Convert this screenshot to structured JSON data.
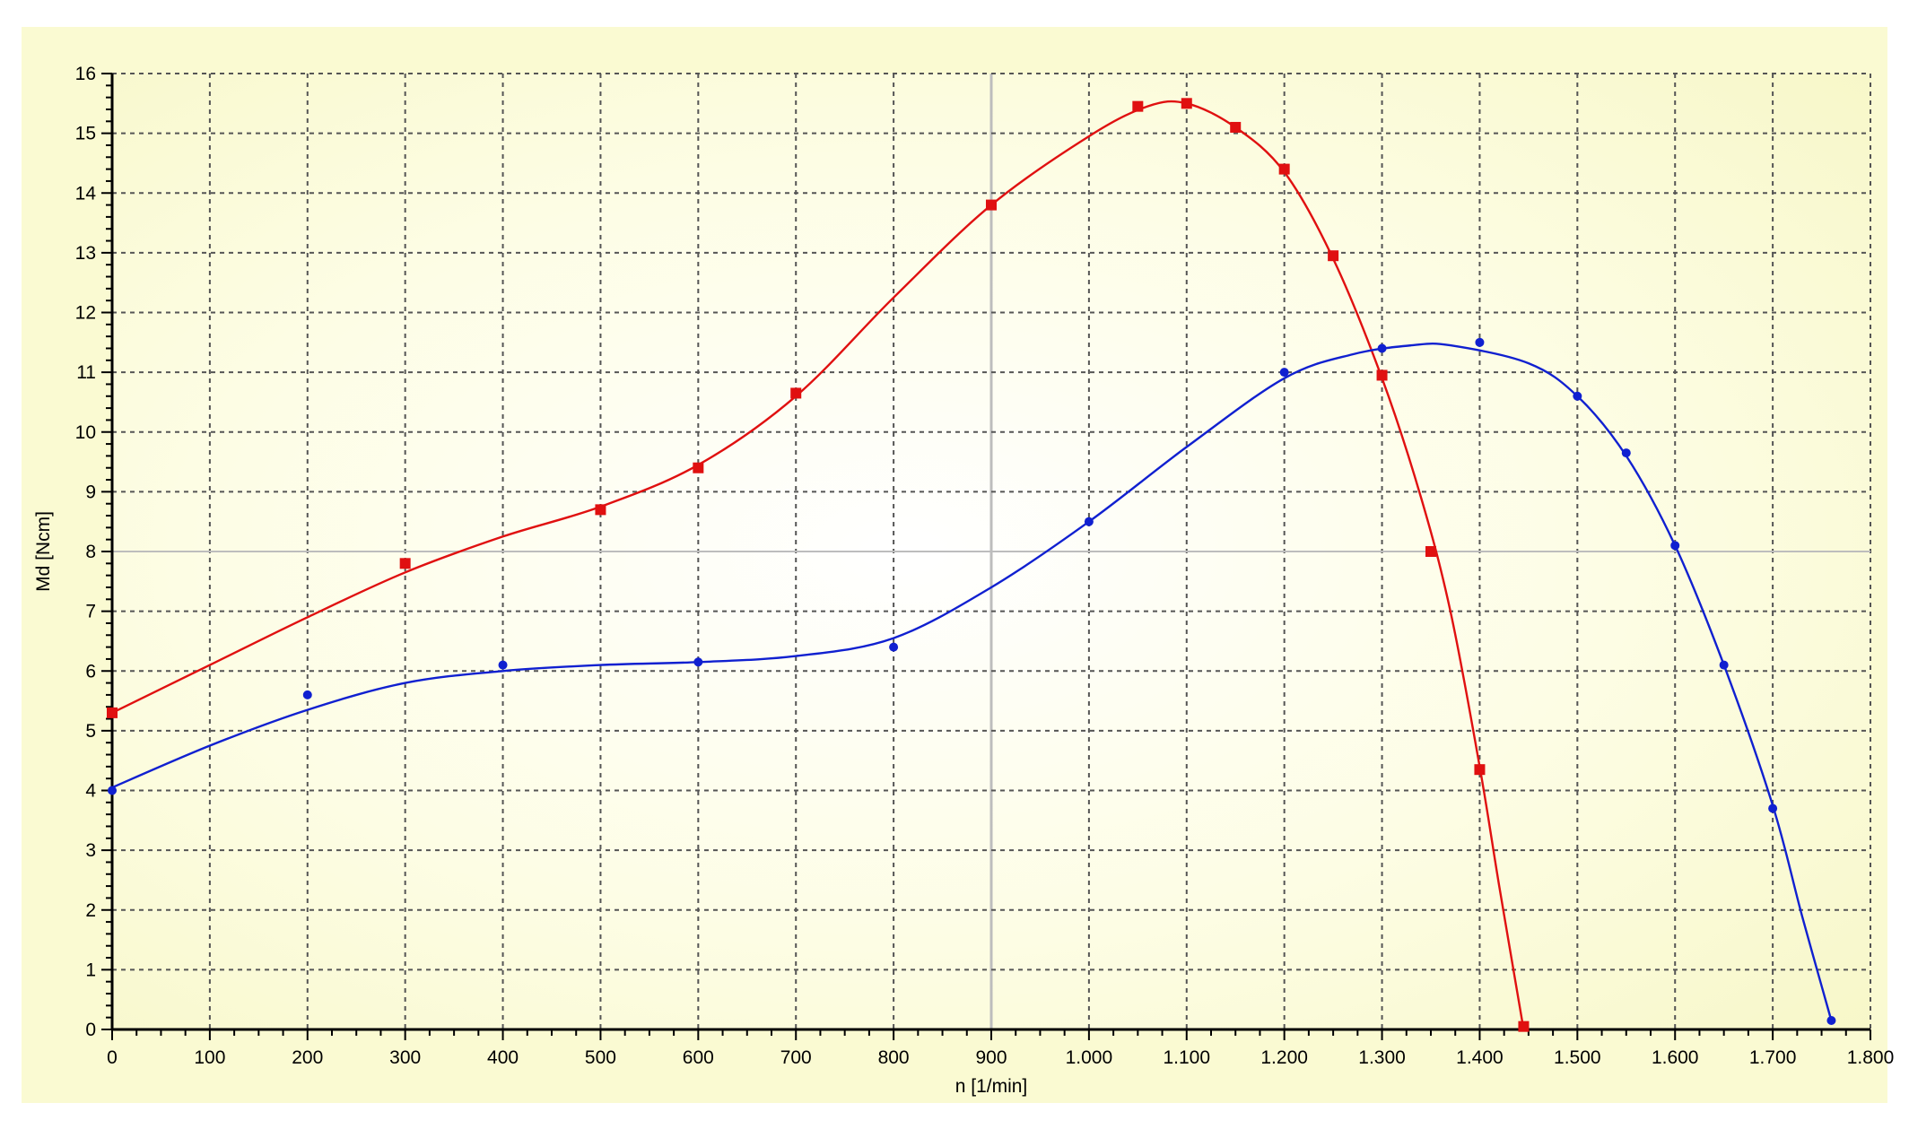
{
  "chart_data": {
    "type": "line",
    "title": "",
    "xlabel": "n [1/min]",
    "ylabel": "Md [Ncm]",
    "xlim": [
      0,
      1800
    ],
    "ylim": [
      0,
      16
    ],
    "x_ticks": [
      0,
      100,
      200,
      300,
      400,
      500,
      600,
      700,
      800,
      900,
      1000,
      1100,
      1200,
      1300,
      1400,
      1500,
      1600,
      1700,
      1800
    ],
    "x_tick_labels": [
      "0",
      "100",
      "200",
      "300",
      "400",
      "500",
      "600",
      "700",
      "800",
      "900",
      "1.000",
      "1.100",
      "1.200",
      "1.300",
      "1.400",
      "1.500",
      "1.600",
      "1.700",
      "1.800"
    ],
    "y_ticks": [
      0,
      1,
      2,
      3,
      4,
      5,
      6,
      7,
      8,
      9,
      10,
      11,
      12,
      13,
      14,
      15,
      16
    ],
    "y_tick_labels": [
      "0",
      "1",
      "2",
      "3",
      "4",
      "5",
      "6",
      "7",
      "8",
      "9",
      "10",
      "11",
      "12",
      "13",
      "14",
      "15",
      "16"
    ],
    "grid": true,
    "legend": "none",
    "colors": {
      "background": "#fdfde2",
      "plot_outer": "#fafad2",
      "grid": "#555555",
      "red_series": "#e01010",
      "blue_series": "#1020d0"
    },
    "series": [
      {
        "marker": "square",
        "color": "#e01010",
        "points": [
          {
            "x": 0,
            "y": 5.3
          },
          {
            "x": 300,
            "y": 7.8
          },
          {
            "x": 500,
            "y": 8.7
          },
          {
            "x": 600,
            "y": 9.4
          },
          {
            "x": 700,
            "y": 10.65
          },
          {
            "x": 900,
            "y": 13.8
          },
          {
            "x": 1050,
            "y": 15.45
          },
          {
            "x": 1100,
            "y": 15.5
          },
          {
            "x": 1150,
            "y": 15.1
          },
          {
            "x": 1200,
            "y": 14.4
          },
          {
            "x": 1250,
            "y": 12.95
          },
          {
            "x": 1300,
            "y": 10.95
          },
          {
            "x": 1350,
            "y": 8.0
          },
          {
            "x": 1400,
            "y": 4.35
          },
          {
            "x": 1445,
            "y": 0.05
          }
        ],
        "curve": [
          [
            0,
            5.3
          ],
          [
            100,
            6.1
          ],
          [
            200,
            6.9
          ],
          [
            300,
            7.65
          ],
          [
            400,
            8.25
          ],
          [
            500,
            8.75
          ],
          [
            600,
            9.45
          ],
          [
            700,
            10.6
          ],
          [
            800,
            12.25
          ],
          [
            900,
            13.8
          ],
          [
            1000,
            14.95
          ],
          [
            1060,
            15.45
          ],
          [
            1100,
            15.5
          ],
          [
            1150,
            15.1
          ],
          [
            1200,
            14.35
          ],
          [
            1250,
            12.9
          ],
          [
            1300,
            10.9
          ],
          [
            1340,
            8.9
          ],
          [
            1370,
            7.0
          ],
          [
            1400,
            4.4
          ],
          [
            1420,
            2.4
          ],
          [
            1445,
            0.0
          ]
        ]
      },
      {
        "marker": "circle",
        "color": "#1020d0",
        "points": [
          {
            "x": 0,
            "y": 4.0
          },
          {
            "x": 200,
            "y": 5.6
          },
          {
            "x": 400,
            "y": 6.1
          },
          {
            "x": 600,
            "y": 6.15
          },
          {
            "x": 800,
            "y": 6.4
          },
          {
            "x": 1000,
            "y": 8.5
          },
          {
            "x": 1200,
            "y": 11.0
          },
          {
            "x": 1300,
            "y": 11.4
          },
          {
            "x": 1400,
            "y": 11.5
          },
          {
            "x": 1500,
            "y": 10.6
          },
          {
            "x": 1550,
            "y": 9.65
          },
          {
            "x": 1600,
            "y": 8.1
          },
          {
            "x": 1650,
            "y": 6.1
          },
          {
            "x": 1700,
            "y": 3.7
          },
          {
            "x": 1760,
            "y": 0.15
          }
        ],
        "curve": [
          [
            0,
            4.05
          ],
          [
            100,
            4.75
          ],
          [
            200,
            5.35
          ],
          [
            300,
            5.8
          ],
          [
            400,
            6.0
          ],
          [
            500,
            6.1
          ],
          [
            600,
            6.15
          ],
          [
            700,
            6.25
          ],
          [
            800,
            6.55
          ],
          [
            900,
            7.4
          ],
          [
            1000,
            8.5
          ],
          [
            1100,
            9.75
          ],
          [
            1200,
            10.9
          ],
          [
            1270,
            11.3
          ],
          [
            1330,
            11.45
          ],
          [
            1370,
            11.45
          ],
          [
            1450,
            11.15
          ],
          [
            1500,
            10.6
          ],
          [
            1550,
            9.6
          ],
          [
            1600,
            8.1
          ],
          [
            1650,
            6.1
          ],
          [
            1700,
            3.75
          ],
          [
            1730,
            1.9
          ],
          [
            1760,
            0.15
          ]
        ]
      }
    ]
  }
}
